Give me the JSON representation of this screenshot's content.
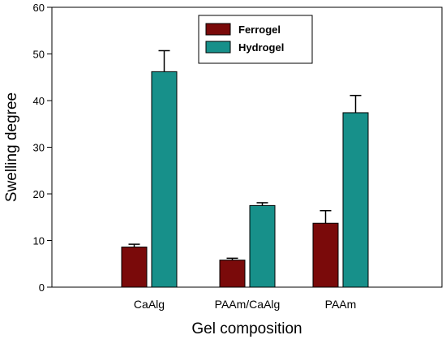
{
  "chart_data": {
    "type": "bar",
    "title": "",
    "xlabel": "Gel composition",
    "ylabel": "Swelling degree",
    "ylim": [
      0,
      60
    ],
    "yticks": [
      "0",
      "10",
      "20",
      "30",
      "40",
      "50",
      "60"
    ],
    "categories": [
      "CaAlg",
      "PAAm/CaAlg",
      "PAAm"
    ],
    "series": [
      {
        "name": "Ferrogel",
        "color": "#7a0a0a",
        "values": [
          8.6,
          5.8,
          13.7
        ],
        "errors": [
          0.6,
          0.4,
          2.7
        ]
      },
      {
        "name": "Hydrogel",
        "color": "#17908a",
        "values": [
          46.2,
          17.5,
          37.4
        ],
        "errors": [
          4.5,
          0.6,
          3.7
        ]
      }
    ],
    "legend_position": "top-center",
    "grid": false,
    "error_bars": true
  }
}
